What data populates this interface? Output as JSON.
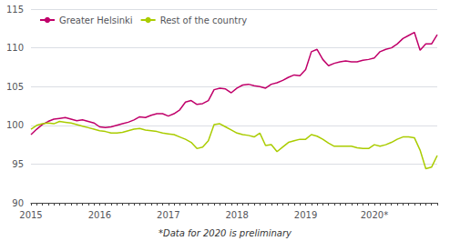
{
  "chart_data": {
    "type": "line",
    "annotations": [
      "*Data for 2020 is preliminary"
    ],
    "categories": [
      "2015",
      null,
      null,
      null,
      null,
      null,
      null,
      null,
      null,
      null,
      null,
      null,
      "2016",
      null,
      null,
      null,
      null,
      null,
      null,
      null,
      null,
      null,
      null,
      null,
      "2017",
      null,
      null,
      null,
      null,
      null,
      null,
      null,
      null,
      null,
      null,
      null,
      "2018",
      null,
      null,
      null,
      null,
      null,
      null,
      null,
      null,
      null,
      null,
      null,
      "2019",
      null,
      null,
      null,
      null,
      null,
      null,
      null,
      null,
      null,
      null,
      null,
      "2020*",
      null,
      null,
      null,
      null,
      null,
      null,
      null,
      null,
      null,
      null,
      null
    ],
    "series": [
      {
        "name": "Greater Helsinki",
        "color": "#C0006A",
        "values": [
          98.8,
          99.5,
          100.1,
          100.5,
          100.8,
          100.9,
          101.0,
          100.8,
          100.6,
          100.7,
          100.5,
          100.3,
          99.8,
          99.7,
          99.8,
          100.0,
          100.2,
          100.4,
          100.7,
          101.1,
          101.0,
          101.3,
          101.5,
          101.5,
          101.2,
          101.5,
          102.0,
          103.0,
          103.2,
          102.7,
          102.8,
          103.2,
          104.6,
          104.8,
          104.7,
          104.2,
          104.8,
          105.2,
          105.3,
          105.1,
          105.0,
          104.8,
          105.3,
          105.5,
          105.8,
          106.2,
          106.5,
          106.4,
          107.2,
          109.5,
          109.8,
          108.5,
          107.7,
          108.0,
          108.2,
          108.3,
          108.2,
          108.2,
          108.4,
          108.5,
          108.7,
          109.5,
          109.8,
          110.0,
          110.5,
          111.2,
          111.6,
          112.0,
          109.7,
          110.5,
          110.5,
          111.7
        ]
      },
      {
        "name": "Rest of the country",
        "color": "#AACC00",
        "values": [
          99.5,
          100.0,
          100.2,
          100.3,
          100.2,
          100.5,
          100.4,
          100.3,
          100.1,
          99.9,
          99.7,
          99.5,
          99.3,
          99.2,
          99.0,
          99.0,
          99.1,
          99.3,
          99.5,
          99.6,
          99.4,
          99.3,
          99.2,
          99.0,
          98.9,
          98.8,
          98.5,
          98.2,
          97.8,
          97.0,
          97.2,
          98.0,
          100.1,
          100.2,
          99.8,
          99.4,
          99.0,
          98.8,
          98.7,
          98.5,
          99.0,
          97.4,
          97.5,
          96.6,
          97.2,
          97.8,
          98.0,
          98.2,
          98.2,
          98.8,
          98.6,
          98.2,
          97.7,
          97.3,
          97.3,
          97.3,
          97.3,
          97.1,
          97.0,
          97.0,
          97.5,
          97.3,
          97.5,
          97.8,
          98.2,
          98.5,
          98.5,
          98.4,
          96.8,
          94.4,
          94.6,
          96.1
        ]
      }
    ],
    "ylim": [
      90,
      115
    ],
    "yticks": [
      90,
      95,
      100,
      105,
      110,
      115
    ],
    "grid": true,
    "legend": "upper left"
  }
}
